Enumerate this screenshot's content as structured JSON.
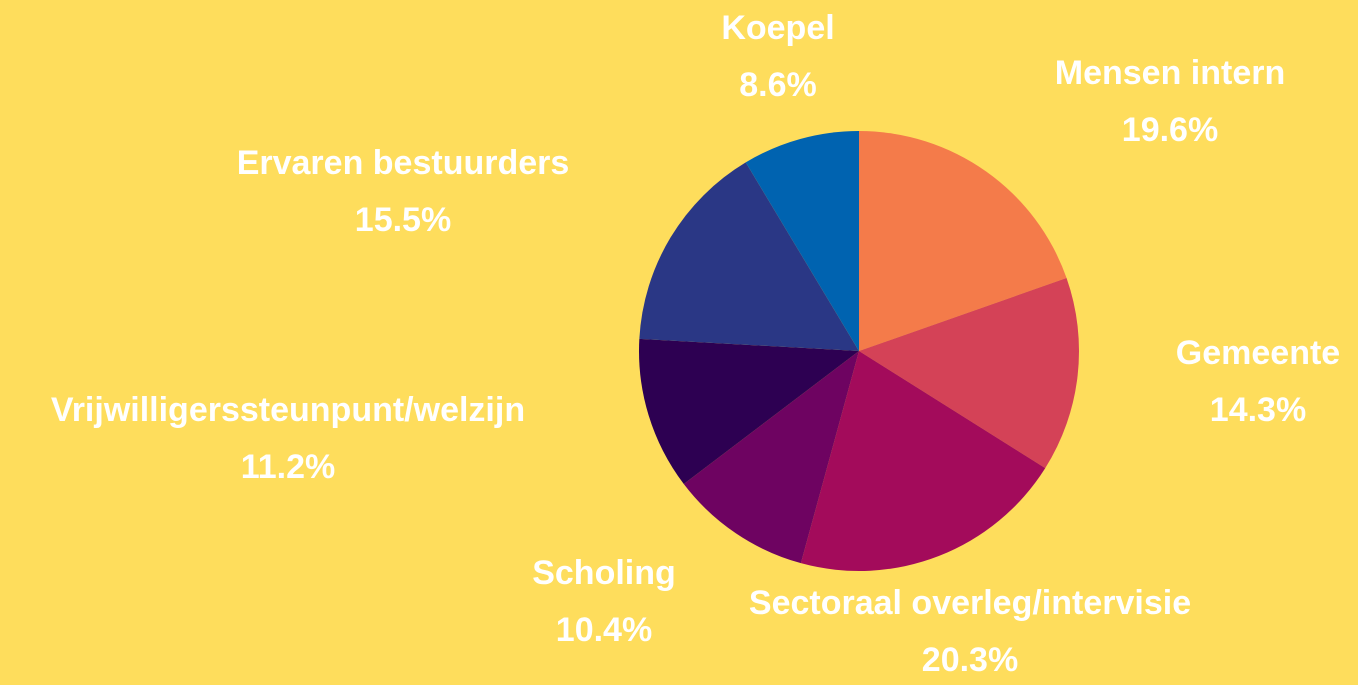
{
  "chart_data": {
    "type": "pie",
    "categories": [
      "Mensen intern",
      "Gemeente",
      "Sectoraal overleg/intervisie",
      "Scholing",
      "Vrijwilligerssteunpunt/welzijn",
      "Ervaren bestuurders",
      "Koepel"
    ],
    "values": [
      19.6,
      14.3,
      20.3,
      10.4,
      11.2,
      15.5,
      8.6
    ],
    "value_labels": [
      "19.6%",
      "14.3%",
      "20.3%",
      "10.4%",
      "11.2%",
      "15.5%",
      "8.6%"
    ],
    "colors": [
      "#f47b4a",
      "#d44257",
      "#a30b5b",
      "#6e0361",
      "#2d0052",
      "#2a3785",
      "#0063b0"
    ]
  }
}
